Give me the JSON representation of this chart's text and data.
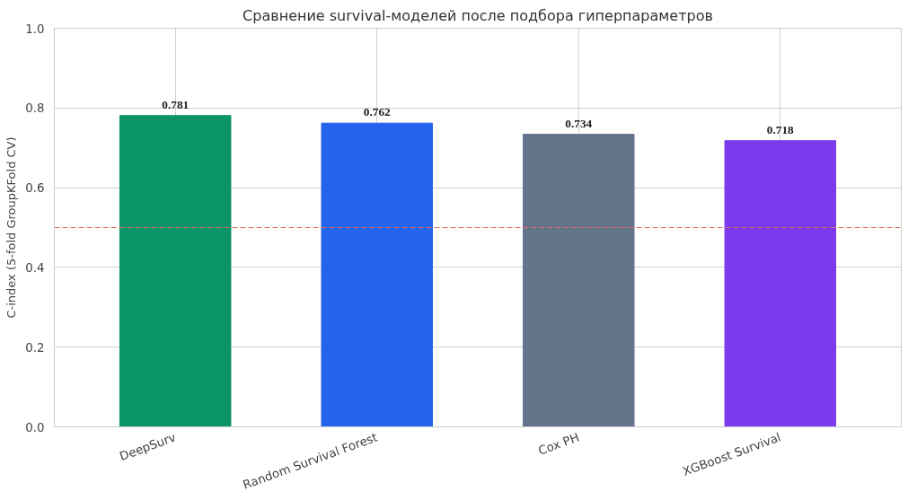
{
  "chart_data": {
    "type": "bar",
    "title": "Сравнение survival-моделей после подбора гиперпараметров",
    "ylabel": "C-index (5-fold GroupKFold CV)",
    "categories": [
      "DeepSurv",
      "Random Survival Forest",
      "Cox PH",
      "XGBoost Survival"
    ],
    "values": [
      0.781,
      0.762,
      0.734,
      0.718
    ],
    "colors": [
      "#0a9468",
      "#2563eb",
      "#64748b",
      "#7c3aed"
    ],
    "ylim": [
      0,
      1.0
    ],
    "yticks": [
      {
        "value": 0,
        "label": "0.0"
      },
      {
        "value": 0.2,
        "label": "0.2"
      },
      {
        "value": 0.4,
        "label": "0.4"
      },
      {
        "value": 0.6,
        "label": "0.6"
      },
      {
        "value": 0.8,
        "label": "0.8"
      },
      {
        "value": 1.0,
        "label": "1.0"
      }
    ],
    "ref_lines": [
      {
        "axis": "y",
        "value": 0.5,
        "label": null,
        "color": "#e06666",
        "line_style": "dashed"
      }
    ],
    "data_labels": true,
    "grid": true
  }
}
